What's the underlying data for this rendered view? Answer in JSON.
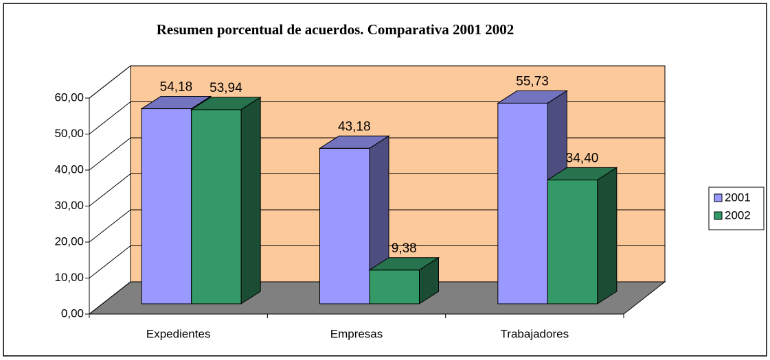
{
  "chart_data": {
    "type": "bar3d",
    "title": "Resumen porcentual de acuerdos. Comparativa 2001 2002",
    "categories": [
      "Expedientes",
      "Empresas",
      "Trabajadores"
    ],
    "series": [
      {
        "name": "2001",
        "color": "#9999ff",
        "values": [
          54.18,
          43.18,
          55.73
        ],
        "value_labels": [
          "54,18",
          "43,18",
          "55,73"
        ]
      },
      {
        "name": "2002",
        "color": "#339966",
        "values": [
          53.94,
          9.38,
          34.4
        ],
        "value_labels": [
          "53,94",
          "9,38",
          "34,40"
        ]
      }
    ],
    "ylim": [
      0,
      60
    ],
    "yticks": [
      {
        "value": 0,
        "label": "0,00"
      },
      {
        "value": 10,
        "label": "10,00"
      },
      {
        "value": 20,
        "label": "20,00"
      },
      {
        "value": 30,
        "label": "30,00"
      },
      {
        "value": 40,
        "label": "40,00"
      },
      {
        "value": 50,
        "label": "50,00"
      },
      {
        "value": 60,
        "label": "60,00"
      }
    ],
    "grid": true,
    "legend": "right"
  }
}
